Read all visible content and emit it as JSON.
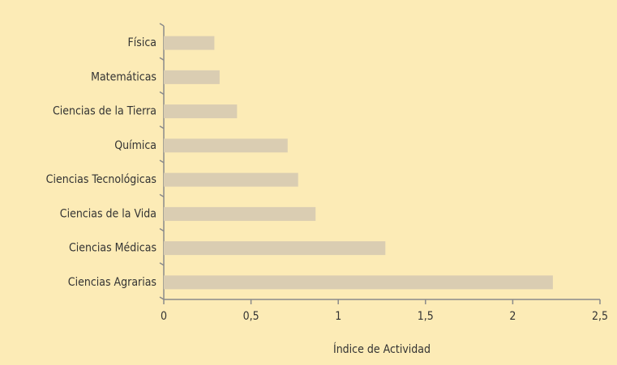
{
  "chart_data": {
    "type": "bar",
    "orientation": "horizontal",
    "x_label": "Índice de Actividad",
    "categories": [
      "Física",
      "Matemáticas",
      "Ciencias de la Tierra",
      "Química",
      "Ciencias Tecnológicas",
      "Ciencias de la Vida",
      "Ciencias Médicas",
      "Ciencias Agrarias"
    ],
    "values": [
      0.29,
      0.32,
      0.42,
      0.71,
      0.77,
      0.87,
      1.27,
      2.23
    ],
    "color": "#dacdb2",
    "xlim": [
      0,
      2.5
    ],
    "xticks": [
      0,
      {
        "value": 0.5,
        "label": "0,5"
      },
      1,
      {
        "value": 1.5,
        "label": "1,5"
      },
      2,
      {
        "value": 2.5,
        "label": "2,5"
      }
    ]
  }
}
